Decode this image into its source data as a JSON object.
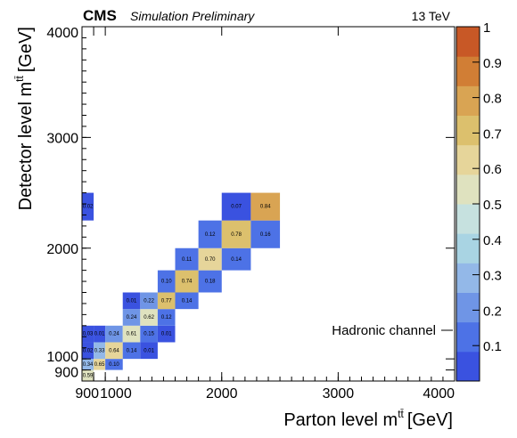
{
  "header": {
    "experiment": "CMS",
    "status": "Simulation Preliminary",
    "energy": "13 TeV"
  },
  "annotation": "Hadronic channel",
  "chart_data": {
    "type": "heatmap",
    "xlabel": "Parton level m",
    "ylabel": "Detector level m",
    "label_superscript": "tt̄",
    "label_unit": "[GeV]",
    "x_ticks": [
      "900",
      "1000",
      "2000",
      "3000",
      "4000"
    ],
    "y_ticks": [
      "900",
      "1000",
      "2000",
      "3000",
      "4000"
    ],
    "bin_edges": [
      800,
      900,
      1000,
      1150,
      1300,
      1450,
      1600,
      1800,
      2000,
      2250,
      2500,
      2800,
      4000
    ],
    "colorbar_ticks": [
      "0.1",
      "0.2",
      "0.3",
      "0.4",
      "0.5",
      "0.6",
      "0.7",
      "0.8",
      "0.9",
      "1"
    ],
    "colorbar_range": [
      0,
      1
    ],
    "cells": [
      {
        "x": 0,
        "y": 0,
        "v": 0.59,
        "label": "0.59"
      },
      {
        "x": 0,
        "y": 1,
        "v": 0.34,
        "label": "0.34"
      },
      {
        "x": 1,
        "y": 1,
        "v": 0.65,
        "label": "0.65"
      },
      {
        "x": 2,
        "y": 1,
        "v": 0.1,
        "label": "0.10"
      },
      {
        "x": 0,
        "y": 2,
        "v": 0.02,
        "label": "0.02"
      },
      {
        "x": 1,
        "y": 2,
        "v": 0.33,
        "label": "0.33"
      },
      {
        "x": 2,
        "y": 2,
        "v": 0.64,
        "label": "0.64"
      },
      {
        "x": 3,
        "y": 2,
        "v": 0.14,
        "label": "0.14"
      },
      {
        "x": 4,
        "y": 2,
        "v": 0.01,
        "label": "0.01"
      },
      {
        "x": 0,
        "y": 3,
        "v": 0.03,
        "label": "0.03"
      },
      {
        "x": 1,
        "y": 3,
        "v": 0.01,
        "label": "0.01"
      },
      {
        "x": 2,
        "y": 3,
        "v": 0.24,
        "label": "0.24"
      },
      {
        "x": 3,
        "y": 3,
        "v": 0.61,
        "label": "0.61"
      },
      {
        "x": 4,
        "y": 3,
        "v": 0.15,
        "label": "0.15"
      },
      {
        "x": 5,
        "y": 3,
        "v": 0.01,
        "label": "0.01"
      },
      {
        "x": 3,
        "y": 4,
        "v": 0.24,
        "label": "0.24"
      },
      {
        "x": 4,
        "y": 4,
        "v": 0.62,
        "label": "0.62"
      },
      {
        "x": 5,
        "y": 4,
        "v": 0.12,
        "label": "0.12"
      },
      {
        "x": 3,
        "y": 5,
        "v": 0.01,
        "label": "0.01"
      },
      {
        "x": 4,
        "y": 5,
        "v": 0.22,
        "label": "0.22"
      },
      {
        "x": 5,
        "y": 5,
        "v": 0.77,
        "label": "0.77"
      },
      {
        "x": 6,
        "y": 5,
        "v": 0.14,
        "label": "0.14"
      },
      {
        "x": 5,
        "y": 6,
        "v": 0.1,
        "label": "0.10"
      },
      {
        "x": 6,
        "y": 6,
        "v": 0.74,
        "label": "0.74"
      },
      {
        "x": 7,
        "y": 6,
        "v": 0.18,
        "label": "0.18"
      },
      {
        "x": 6,
        "y": 7,
        "v": 0.11,
        "label": "0.11"
      },
      {
        "x": 7,
        "y": 7,
        "v": 0.7,
        "label": "0.70"
      },
      {
        "x": 8,
        "y": 7,
        "v": 0.14,
        "label": "0.14"
      },
      {
        "x": 7,
        "y": 8,
        "v": 0.12,
        "label": "0.12"
      },
      {
        "x": 8,
        "y": 8,
        "v": 0.78,
        "label": "0.78"
      },
      {
        "x": 9,
        "y": 8,
        "v": 0.16,
        "label": "0.16"
      },
      {
        "x": 0,
        "y": 9,
        "v": 0.02,
        "label": "0.02"
      },
      {
        "x": 8,
        "y": 9,
        "v": 0.07,
        "label": "0.07"
      },
      {
        "x": 9,
        "y": 9,
        "v": 0.84,
        "label": "0.84"
      }
    ]
  }
}
